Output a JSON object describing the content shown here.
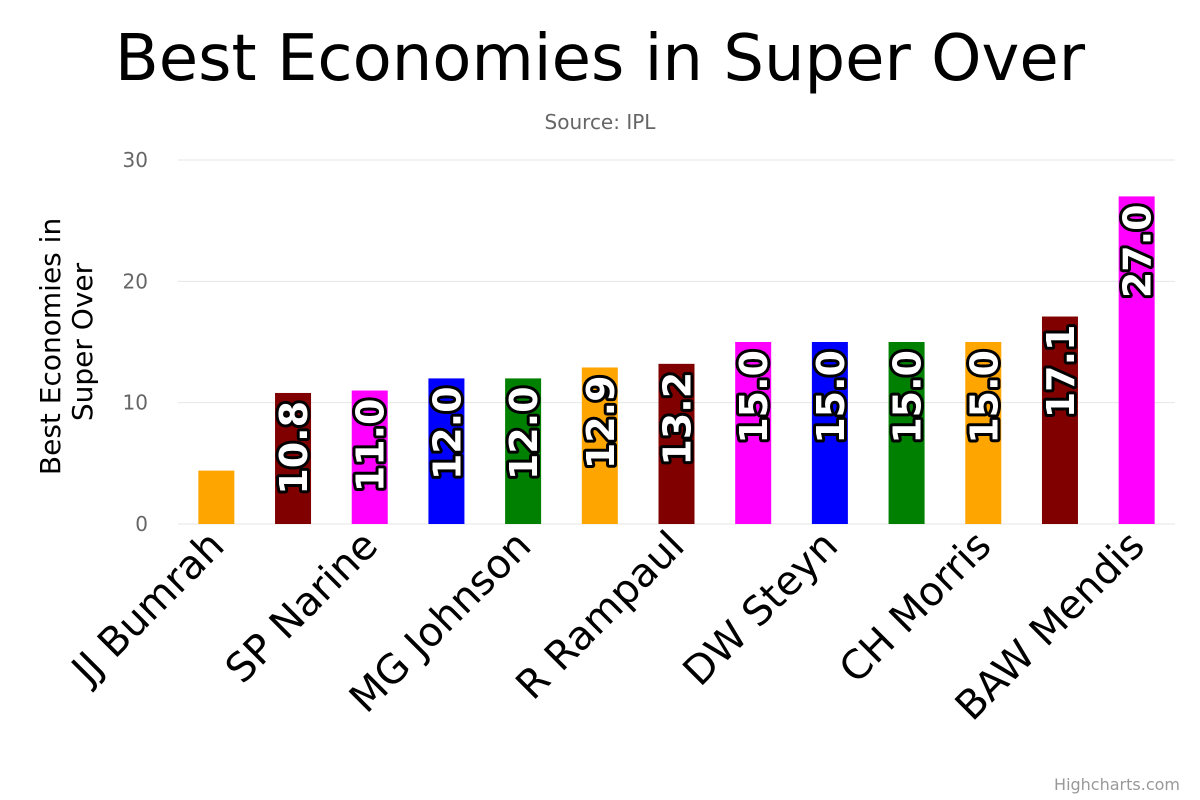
{
  "chart_data": {
    "type": "bar",
    "title": "Best Economies in Super Over",
    "subtitle": "Source: IPL",
    "ylabel": "Best Economies in Super Over",
    "ylabel_lines": [
      "Best Economies in",
      "Super Over"
    ],
    "ylim": [
      0,
      30
    ],
    "yticks": [
      0,
      10,
      20,
      30
    ],
    "grid": true,
    "categories": [
      "JJ Bumrah",
      "",
      "SP Narine",
      "",
      "MG Johnson",
      "",
      "R Rampaul",
      "",
      "DW Steyn",
      "",
      "CH Morris",
      "",
      "BAW Mendis"
    ],
    "values": [
      4.4,
      10.8,
      11.0,
      12.0,
      12.0,
      12.9,
      13.2,
      15.0,
      15.0,
      15.0,
      15.0,
      17.1,
      27.0
    ],
    "data_labels": [
      "",
      "10.8",
      "11.0",
      "12.0",
      "12.0",
      "12.9",
      "13.2",
      "15.0",
      "15.0",
      "15.0",
      "15.0",
      "17.1",
      "27.0"
    ],
    "colors": [
      "#FFA500",
      "#800000",
      "#FF00FF",
      "#0000FF",
      "#008000",
      "#FFA500",
      "#800000",
      "#FF00FF",
      "#0000FF",
      "#008000",
      "#FFA500",
      "#800000",
      "#FF00FF"
    ]
  },
  "credits": "Highcharts.com"
}
